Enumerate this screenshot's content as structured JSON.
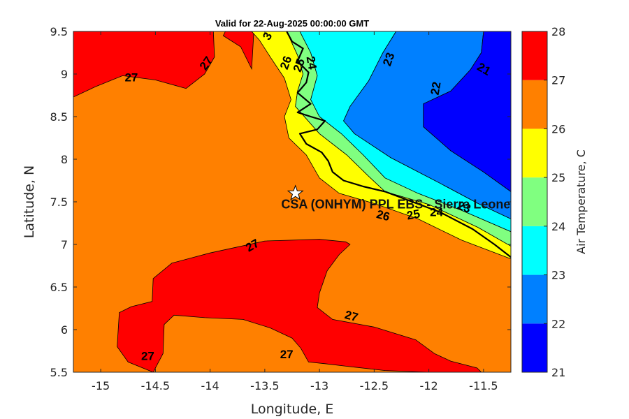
{
  "chart_data": {
    "type": "contour",
    "title": "Valid for 22-Aug-2025 00:00:00 GMT",
    "xlabel": "Longitude, E",
    "ylabel": "Latitude, N",
    "xlim": [
      -15.25,
      -11.25
    ],
    "ylim": [
      5.5,
      9.5
    ],
    "xticks": [
      -15,
      -14.5,
      -14,
      -13.5,
      -13,
      -12.5,
      -12,
      -11.5
    ],
    "yticks": [
      5.5,
      6,
      6.5,
      7,
      7.5,
      8,
      8.5,
      9,
      9.5
    ],
    "colorbar": {
      "label": "Air Temperature, C",
      "ticks": [
        21,
        22,
        23,
        24,
        25,
        26,
        27,
        28
      ],
      "colors": [
        "#0000ff",
        "#0080ff",
        "#00ffff",
        "#80ff80",
        "#ffff00",
        "#ff8000",
        "#ff0000",
        "#800000"
      ]
    },
    "regions": [
      {
        "value": 26,
        "color": "#ff8000",
        "polygon": [
          [
            -15.25,
            5.5
          ],
          [
            -11.25,
            5.5
          ],
          [
            -11.25,
            9.5
          ],
          [
            -15.25,
            9.5
          ]
        ]
      },
      {
        "value": 27,
        "color": "#ff0000",
        "polygon": [
          [
            -15.25,
            9.5
          ],
          [
            -13.97,
            9.5
          ],
          [
            -13.96,
            9.2
          ],
          [
            -14.05,
            9.0
          ],
          [
            -14.22,
            8.83
          ],
          [
            -14.5,
            8.93
          ],
          [
            -14.8,
            8.98
          ],
          [
            -15.05,
            8.85
          ],
          [
            -15.25,
            8.73
          ]
        ]
      },
      {
        "value": 27,
        "color": "#ff0000",
        "polygon": [
          [
            -13.88,
            9.45
          ],
          [
            -13.72,
            9.32
          ],
          [
            -13.62,
            9.06
          ],
          [
            -13.6,
            9.5
          ],
          [
            -13.86,
            9.5
          ]
        ]
      },
      {
        "value": 27,
        "color": "#ff0000",
        "polygon": [
          [
            -14.52,
            5.5
          ],
          [
            -14.75,
            5.62
          ],
          [
            -14.85,
            5.8
          ],
          [
            -14.83,
            6.2
          ],
          [
            -14.72,
            6.27
          ],
          [
            -14.53,
            6.33
          ],
          [
            -14.52,
            6.6
          ],
          [
            -14.35,
            6.78
          ],
          [
            -14.0,
            6.9
          ],
          [
            -13.75,
            6.97
          ],
          [
            -13.5,
            7.04
          ],
          [
            -13.0,
            7.06
          ],
          [
            -12.76,
            7.03
          ],
          [
            -12.72,
            7.0
          ],
          [
            -12.82,
            6.88
          ],
          [
            -12.93,
            6.69
          ],
          [
            -13.0,
            6.43
          ],
          [
            -13.02,
            6.26
          ],
          [
            -12.88,
            6.12
          ],
          [
            -12.5,
            6.03
          ],
          [
            -12.12,
            5.88
          ],
          [
            -11.95,
            5.72
          ],
          [
            -11.8,
            5.63
          ],
          [
            -11.56,
            5.55
          ],
          [
            -11.52,
            5.5
          ],
          [
            -12.0,
            5.5
          ],
          [
            -12.4,
            5.52
          ],
          [
            -12.75,
            5.57
          ],
          [
            -12.95,
            5.6
          ],
          [
            -13.1,
            5.62
          ],
          [
            -13.17,
            5.78
          ],
          [
            -13.25,
            5.9
          ],
          [
            -13.45,
            6.02
          ],
          [
            -13.7,
            6.12
          ],
          [
            -14.05,
            6.14
          ],
          [
            -14.33,
            6.17
          ],
          [
            -14.42,
            6.06
          ],
          [
            -14.43,
            5.72
          ]
        ]
      },
      {
        "value": 25,
        "color": "#ffff00",
        "polygon": [
          [
            -13.62,
            9.5
          ],
          [
            -13.3,
            9.5
          ],
          [
            -13.2,
            9.22
          ],
          [
            -13.15,
            9.0
          ],
          [
            -13.2,
            8.8
          ],
          [
            -13.22,
            8.62
          ],
          [
            -13.0,
            8.3
          ],
          [
            -12.75,
            8.05
          ],
          [
            -12.55,
            7.8
          ],
          [
            -12.4,
            7.62
          ],
          [
            -12.0,
            7.47
          ],
          [
            -11.55,
            7.2
          ],
          [
            -11.25,
            6.98
          ],
          [
            -11.25,
            6.83
          ],
          [
            -11.7,
            7.05
          ],
          [
            -12.1,
            7.3
          ],
          [
            -12.5,
            7.48
          ],
          [
            -12.82,
            7.6
          ],
          [
            -13.0,
            7.78
          ],
          [
            -13.12,
            8.05
          ],
          [
            -13.28,
            8.25
          ],
          [
            -13.32,
            8.5
          ],
          [
            -13.26,
            8.7
          ],
          [
            -13.32,
            8.95
          ],
          [
            -13.45,
            9.2
          ],
          [
            -13.55,
            9.4
          ]
        ]
      },
      {
        "value": 24,
        "color": "#80ff80",
        "polygon": [
          [
            -13.3,
            9.5
          ],
          [
            -13.18,
            9.5
          ],
          [
            -13.08,
            9.25
          ],
          [
            -13.02,
            8.98
          ],
          [
            -13.08,
            8.7
          ],
          [
            -13.0,
            8.5
          ],
          [
            -12.8,
            8.3
          ],
          [
            -12.6,
            8.05
          ],
          [
            -12.4,
            7.78
          ],
          [
            -12.1,
            7.6
          ],
          [
            -11.7,
            7.4
          ],
          [
            -11.25,
            7.15
          ],
          [
            -11.25,
            6.98
          ],
          [
            -11.55,
            7.2
          ],
          [
            -12.0,
            7.47
          ],
          [
            -12.4,
            7.62
          ],
          [
            -12.55,
            7.8
          ],
          [
            -12.75,
            8.05
          ],
          [
            -13.0,
            8.3
          ],
          [
            -13.22,
            8.62
          ],
          [
            -13.2,
            8.8
          ],
          [
            -13.15,
            9.0
          ],
          [
            -13.2,
            9.22
          ]
        ]
      },
      {
        "value": 23,
        "color": "#00ffff",
        "polygon": [
          [
            -13.18,
            9.5
          ],
          [
            -12.3,
            9.5
          ],
          [
            -12.42,
            9.25
          ],
          [
            -12.55,
            8.92
          ],
          [
            -12.72,
            8.62
          ],
          [
            -12.78,
            8.45
          ],
          [
            -12.68,
            8.3
          ],
          [
            -12.35,
            8.02
          ],
          [
            -11.9,
            7.72
          ],
          [
            -11.55,
            7.48
          ],
          [
            -11.25,
            7.3
          ],
          [
            -11.25,
            7.15
          ],
          [
            -11.7,
            7.4
          ],
          [
            -12.1,
            7.6
          ],
          [
            -12.4,
            7.78
          ],
          [
            -12.6,
            8.05
          ],
          [
            -12.8,
            8.3
          ],
          [
            -13.0,
            8.5
          ],
          [
            -13.08,
            8.7
          ],
          [
            -13.02,
            8.98
          ],
          [
            -13.08,
            9.25
          ]
        ]
      },
      {
        "value": 22,
        "color": "#0080ff",
        "polygon": [
          [
            -12.3,
            9.5
          ],
          [
            -11.5,
            9.5
          ],
          [
            -11.52,
            9.25
          ],
          [
            -11.62,
            9.05
          ],
          [
            -11.8,
            8.8
          ],
          [
            -12.05,
            8.65
          ],
          [
            -12.05,
            8.38
          ],
          [
            -11.8,
            8.1
          ],
          [
            -11.5,
            7.85
          ],
          [
            -11.25,
            7.62
          ],
          [
            -11.25,
            7.3
          ],
          [
            -11.55,
            7.48
          ],
          [
            -11.9,
            7.72
          ],
          [
            -12.35,
            8.02
          ],
          [
            -12.68,
            8.3
          ],
          [
            -12.78,
            8.45
          ],
          [
            -12.72,
            8.62
          ],
          [
            -12.55,
            8.92
          ],
          [
            -12.42,
            9.25
          ]
        ]
      },
      {
        "value": 21,
        "color": "#0000ff",
        "polygon": [
          [
            -11.5,
            9.5
          ],
          [
            -11.25,
            9.5
          ],
          [
            -11.25,
            7.62
          ],
          [
            -11.5,
            7.85
          ],
          [
            -11.8,
            8.1
          ],
          [
            -12.05,
            8.38
          ],
          [
            -12.05,
            8.65
          ],
          [
            -11.8,
            8.8
          ],
          [
            -11.62,
            9.05
          ],
          [
            -11.52,
            9.25
          ]
        ]
      }
    ],
    "coastline": [
      [
        -13.3,
        9.5
      ],
      [
        -13.25,
        9.38
      ],
      [
        -13.15,
        9.3
      ],
      [
        -13.2,
        9.15
      ],
      [
        -13.1,
        9.02
      ],
      [
        -13.12,
        8.9
      ],
      [
        -13.2,
        8.78
      ],
      [
        -13.08,
        8.65
      ],
      [
        -13.2,
        8.55
      ],
      [
        -13.08,
        8.5
      ],
      [
        -12.95,
        8.45
      ],
      [
        -13.02,
        8.35
      ],
      [
        -13.18,
        8.3
      ],
      [
        -13.12,
        8.18
      ],
      [
        -12.98,
        8.08
      ],
      [
        -12.92,
        7.98
      ],
      [
        -12.88,
        7.85
      ],
      [
        -12.78,
        7.75
      ],
      [
        -12.6,
        7.68
      ],
      [
        -12.4,
        7.62
      ],
      [
        -12.15,
        7.5
      ],
      [
        -11.9,
        7.38
      ],
      [
        -11.6,
        7.18
      ],
      [
        -11.4,
        7.0
      ],
      [
        -11.25,
        6.85
      ]
    ],
    "contour_labels": [
      {
        "text": "27",
        "lon": -14.72,
        "lat": 8.95,
        "rot": 0
      },
      {
        "text": "27",
        "lon": -14.03,
        "lat": 9.12,
        "rot": -55
      },
      {
        "text": "3",
        "lon": -13.47,
        "lat": 9.44,
        "rot": -60
      },
      {
        "text": "26",
        "lon": -13.3,
        "lat": 9.13,
        "rot": -70
      },
      {
        "text": "25",
        "lon": -13.18,
        "lat": 9.1,
        "rot": -70
      },
      {
        "text": "24",
        "lon": -13.08,
        "lat": 9.13,
        "rot": 80
      },
      {
        "text": "23",
        "lon": -12.36,
        "lat": 9.17,
        "rot": -70
      },
      {
        "text": "22",
        "lon": -11.93,
        "lat": 8.83,
        "rot": -80
      },
      {
        "text": "21",
        "lon": -11.5,
        "lat": 9.05,
        "rot": 30
      },
      {
        "text": "27",
        "lon": -13.61,
        "lat": 6.98,
        "rot": -30
      },
      {
        "text": "27",
        "lon": -12.71,
        "lat": 6.15,
        "rot": 15
      },
      {
        "text": "27",
        "lon": -14.57,
        "lat": 5.68,
        "rot": 0
      },
      {
        "text": "27",
        "lon": -13.3,
        "lat": 5.7,
        "rot": 0
      },
      {
        "text": "26",
        "lon": -12.42,
        "lat": 7.33,
        "rot": 15
      },
      {
        "text": "25",
        "lon": -12.14,
        "lat": 7.34,
        "rot": -10
      },
      {
        "text": "24",
        "lon": -11.93,
        "lat": 7.37,
        "rot": 0
      },
      {
        "text": "23",
        "lon": -11.68,
        "lat": 7.43,
        "rot": 20
      }
    ],
    "marker": {
      "lon": -13.22,
      "lat": 7.6,
      "shape": "star"
    },
    "annotation": {
      "text": "CSA (ONHYM) PPL EBS  - Sierra Leone",
      "lon": -13.35,
      "lat": 7.47
    }
  }
}
